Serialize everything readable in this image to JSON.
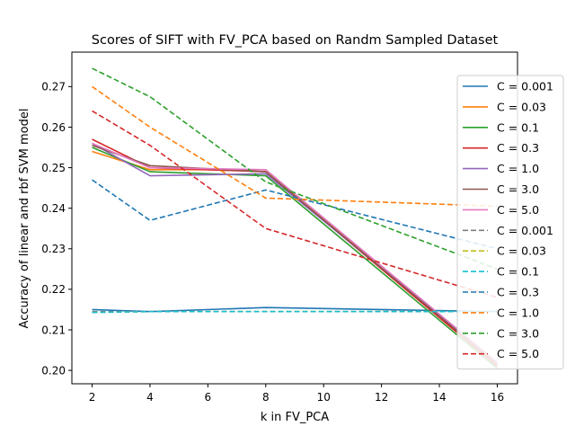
{
  "chart_data": {
    "type": "line",
    "title": "Scores of SIFT with FV_PCA based on Randm Sampled Dataset",
    "xlabel": "k in FV_PCA",
    "ylabel": "Accuracy of linear and rbf SVM model",
    "x": [
      2,
      4,
      8,
      16
    ],
    "xticks": [
      "2",
      "4",
      "6",
      "8",
      "10",
      "12",
      "14",
      "16"
    ],
    "yticks": [
      "0.20",
      "0.21",
      "0.22",
      "0.23",
      "0.24",
      "0.25",
      "0.26",
      "0.27"
    ],
    "xlim": [
      1.3,
      16.7
    ],
    "ylim": [
      0.1967,
      0.2785
    ],
    "grid": false,
    "legend_position": "right",
    "series": [
      {
        "name": "C = 0.001",
        "color": "#1f77b4",
        "dash": "solid",
        "values": [
          0.215,
          0.2145,
          0.2155,
          0.2145
        ]
      },
      {
        "name": "C = 0.03",
        "color": "#ff7f0e",
        "dash": "solid",
        "values": [
          0.254,
          0.2495,
          0.2495,
          0.201
        ]
      },
      {
        "name": "C = 0.1",
        "color": "#2ca02c",
        "dash": "solid",
        "values": [
          0.255,
          0.249,
          0.248,
          0.2005
        ]
      },
      {
        "name": "C = 0.3",
        "color": "#d62728",
        "dash": "solid",
        "values": [
          0.257,
          0.25,
          0.249,
          0.201
        ]
      },
      {
        "name": "C = 1.0",
        "color": "#9467bd",
        "dash": "solid",
        "values": [
          0.256,
          0.248,
          0.2485,
          0.202
        ]
      },
      {
        "name": "C = 3.0",
        "color": "#8c564b",
        "dash": "solid",
        "values": [
          0.2555,
          0.2505,
          0.249,
          0.2015
        ]
      },
      {
        "name": "C = 5.0",
        "color": "#e377c2",
        "dash": "solid",
        "values": [
          0.256,
          0.25,
          0.2495,
          0.202
        ]
      },
      {
        "name": "C = 0.001",
        "color": "#7f7f7f",
        "dash": "dashed",
        "values": [
          0.2145,
          0.2145,
          0.2145,
          0.2145
        ]
      },
      {
        "name": "C = 0.03",
        "color": "#bcbd22",
        "dash": "dashed",
        "values": [
          0.2143,
          0.2145,
          0.2145,
          0.2145
        ]
      },
      {
        "name": "C = 0.1",
        "color": "#17becf",
        "dash": "dashed",
        "values": [
          0.2143,
          0.2145,
          0.2145,
          0.2145
        ]
      },
      {
        "name": "C = 0.3",
        "color": "#1f77b4",
        "dash": "dashed",
        "values": [
          0.247,
          0.237,
          0.2445,
          0.23
        ]
      },
      {
        "name": "C = 1.0",
        "color": "#ff7f0e",
        "dash": "dashed",
        "values": [
          0.27,
          0.26,
          0.2425,
          0.2405
        ]
      },
      {
        "name": "C = 3.0",
        "color": "#2ca02c",
        "dash": "dashed",
        "values": [
          0.2745,
          0.2675,
          0.2465,
          0.225
        ]
      },
      {
        "name": "C = 5.0",
        "color": "#d62728",
        "dash": "dashed",
        "values": [
          0.264,
          0.2555,
          0.235,
          0.218
        ]
      }
    ]
  }
}
